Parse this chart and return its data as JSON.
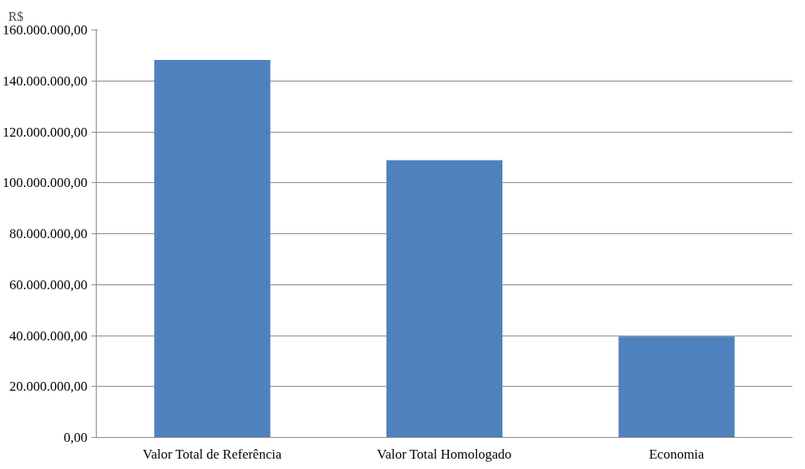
{
  "chart_data": {
    "type": "bar",
    "ylabel": "R$",
    "categories": [
      "Valor Total de Referência",
      "Valor Total Homologado",
      "Economia"
    ],
    "values": [
      148200000,
      108900000,
      39600000
    ],
    "color": "#4f81bd",
    "ylim": [
      0,
      160000000
    ],
    "yticks": [
      {
        "value": 0,
        "label": "0,00"
      },
      {
        "value": 20000000,
        "label": "20.000.000,00"
      },
      {
        "value": 40000000,
        "label": "40.000.000,00"
      },
      {
        "value": 60000000,
        "label": "60.000.000,00"
      },
      {
        "value": 80000000,
        "label": "80.000.000,00"
      },
      {
        "value": 100000000,
        "label": "100.000.000,00"
      },
      {
        "value": 120000000,
        "label": "120.000.000,00"
      },
      {
        "value": 140000000,
        "label": "140.000.000,00"
      },
      {
        "value": 160000000,
        "label": "160.000.000,00"
      }
    ],
    "grid": "y"
  }
}
